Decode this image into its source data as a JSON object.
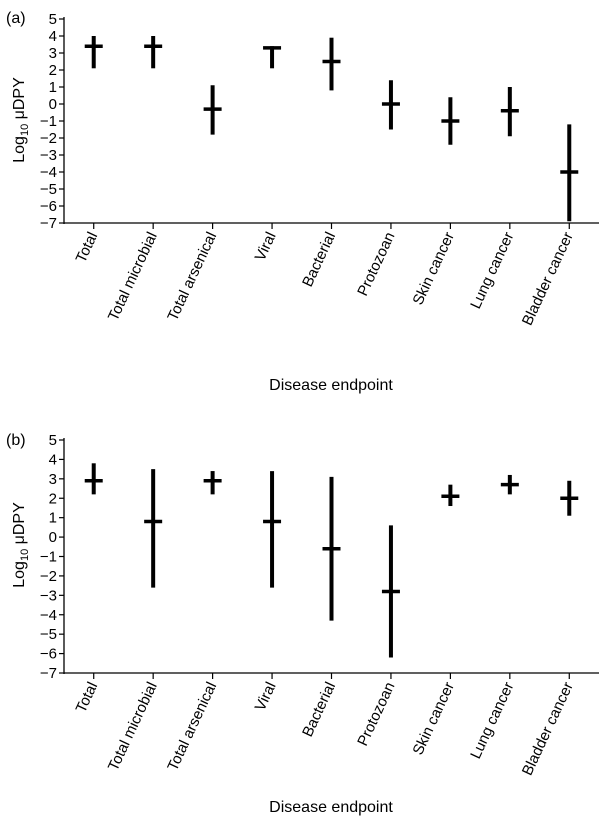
{
  "chart_data": [
    {
      "type": "range",
      "panel_label": "(a)",
      "xlabel": "Disease endpoint",
      "ylabel_main": "Log",
      "ylabel_sub": "10",
      "ylabel_rest": " μDPY",
      "ylim": [
        -7,
        5
      ],
      "yticks": [
        "5",
        "4",
        "3",
        "2",
        "1",
        "0",
        "−1",
        "−2",
        "−3",
        "−4",
        "−5",
        "−6",
        "−7"
      ],
      "grid": false,
      "categories": [
        "Total",
        "Total microbial",
        "Total arsenical",
        "Viral",
        "Bacterial",
        "Protozoan",
        "Skin cancer",
        "Lung cancer",
        "Bladder cancer"
      ],
      "points": [
        {
          "low": 2.1,
          "mid": 3.4,
          "high": 4.0
        },
        {
          "low": 2.1,
          "mid": 3.4,
          "high": 4.0
        },
        {
          "low": -1.8,
          "mid": -0.3,
          "high": 1.1
        },
        {
          "low": 2.1,
          "mid": 3.3,
          "high": 3.4
        },
        {
          "low": 0.8,
          "mid": 2.5,
          "high": 3.9
        },
        {
          "low": -1.5,
          "mid": 0.0,
          "high": 1.4
        },
        {
          "low": -2.4,
          "mid": -1.0,
          "high": 0.4
        },
        {
          "low": -1.9,
          "mid": -0.4,
          "high": 1.0
        },
        {
          "low": -6.9,
          "mid": -4.0,
          "high": -1.2
        }
      ]
    },
    {
      "type": "range",
      "panel_label": "(b)",
      "xlabel": "Disease endpoint",
      "ylabel_main": "Log",
      "ylabel_sub": "10",
      "ylabel_rest": " μDPY",
      "ylim": [
        -7,
        5
      ],
      "yticks": [
        "5",
        "4",
        "3",
        "2",
        "1",
        "0",
        "−1",
        "−2",
        "−3",
        "−4",
        "−5",
        "−6",
        "−7"
      ],
      "grid": false,
      "categories": [
        "Total",
        "Total microbial",
        "Total arsenical",
        "Viral",
        "Bacterial",
        "Protozoan",
        "Skin cancer",
        "Lung cancer",
        "Bladder cancer"
      ],
      "points": [
        {
          "low": 2.2,
          "mid": 2.9,
          "high": 3.8
        },
        {
          "low": -2.6,
          "mid": 0.8,
          "high": 3.5
        },
        {
          "low": 2.2,
          "mid": 2.9,
          "high": 3.4
        },
        {
          "low": -2.6,
          "mid": 0.8,
          "high": 3.4
        },
        {
          "low": -4.3,
          "mid": -0.6,
          "high": 3.1
        },
        {
          "low": -6.2,
          "mid": -2.8,
          "high": 0.6
        },
        {
          "low": 1.6,
          "mid": 2.1,
          "high": 2.7
        },
        {
          "low": 2.2,
          "mid": 2.7,
          "high": 3.2
        },
        {
          "low": 1.1,
          "mid": 2.0,
          "high": 2.9
        }
      ]
    }
  ]
}
